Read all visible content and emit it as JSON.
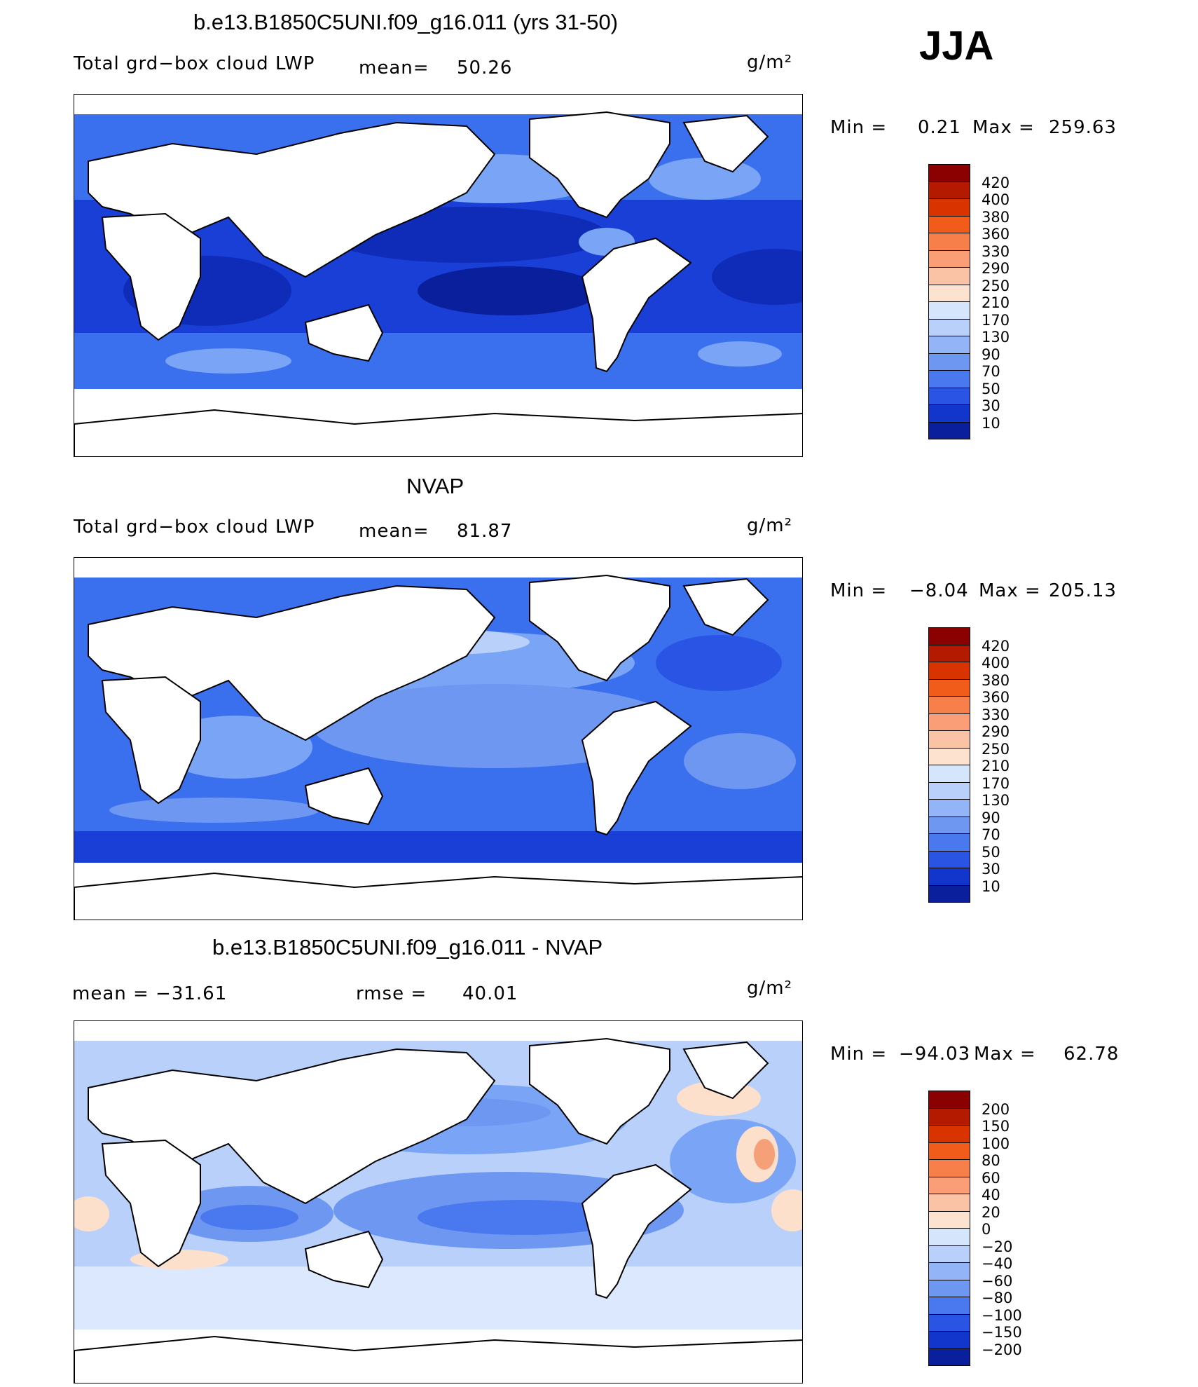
{
  "season": "JJA",
  "colors": {
    "deep_blue": "#0a1f9c",
    "mid_blue": "#1f4fe0",
    "blue": "#3a72f0",
    "light_blue": "#7aa4f5",
    "pale_blue": "#b9d0fa",
    "palest": "#dce8fd",
    "land": "#ffffff",
    "coast": "#000000",
    "warm_pale": "#fde0cc",
    "warm": "#f6a07a"
  },
  "panels": [
    {
      "title": "b.e13.B1850C5UNI.f09_g16.011 (yrs 31-50)",
      "left_label": "Total grd−box cloud LWP",
      "mean_label": "mean=",
      "mean_value": "50.26",
      "units": "g/m²",
      "min_label": "Min =",
      "min_value": "0.21",
      "max_label": "Max =",
      "max_value": "259.63",
      "colorbar": {
        "labels": [
          "420",
          "400",
          "380",
          "360",
          "330",
          "290",
          "250",
          "210",
          "170",
          "130",
          "90",
          "70",
          "50",
          "30",
          "10"
        ],
        "colors": [
          "#8b0000",
          "#b31a00",
          "#d93300",
          "#f25c1a",
          "#f77f4a",
          "#fa9e78",
          "#fbc3a6",
          "#fde3cf",
          "#d5e5fc",
          "#b8d0fa",
          "#93b4f6",
          "#6e97f2",
          "#4a78ee",
          "#2a55e4",
          "#1236cc",
          "#0a1f9c"
        ]
      }
    },
    {
      "title": "NVAP",
      "left_label": "Total grd−box cloud LWP",
      "mean_label": "mean=",
      "mean_value": "81.87",
      "units": "g/m²",
      "min_label": "Min =",
      "min_value": "−8.04",
      "max_label": "Max =",
      "max_value": "205.13",
      "colorbar": {
        "labels": [
          "420",
          "400",
          "380",
          "360",
          "330",
          "290",
          "250",
          "210",
          "170",
          "130",
          "90",
          "70",
          "50",
          "30",
          "10"
        ],
        "colors": [
          "#8b0000",
          "#b31a00",
          "#d93300",
          "#f25c1a",
          "#f77f4a",
          "#fa9e78",
          "#fbc3a6",
          "#fde3cf",
          "#d5e5fc",
          "#b8d0fa",
          "#93b4f6",
          "#6e97f2",
          "#4a78ee",
          "#2a55e4",
          "#1236cc",
          "#0a1f9c"
        ]
      }
    },
    {
      "title": "b.e13.B1850C5UNI.f09_g16.011 - NVAP",
      "left_label": "mean = −31.61",
      "mean_label": "rmse =",
      "mean_value": "40.01",
      "units": "g/m²",
      "min_label": "Min =",
      "min_value": "−94.03",
      "max_label": "Max =",
      "max_value": "62.78",
      "colorbar": {
        "labels": [
          "200",
          "150",
          "100",
          "80",
          "60",
          "40",
          "20",
          "0",
          "−20",
          "−40",
          "−60",
          "−80",
          "−100",
          "−150",
          "−200"
        ],
        "colors": [
          "#8b0000",
          "#b31a00",
          "#d93300",
          "#f25c1a",
          "#f77f4a",
          "#fa9e78",
          "#fbc3a6",
          "#fde3cf",
          "#d5e5fc",
          "#b8d0fa",
          "#93b4f6",
          "#6e97f2",
          "#4a78ee",
          "#2a55e4",
          "#1236cc",
          "#0a1f9c"
        ]
      }
    }
  ]
}
